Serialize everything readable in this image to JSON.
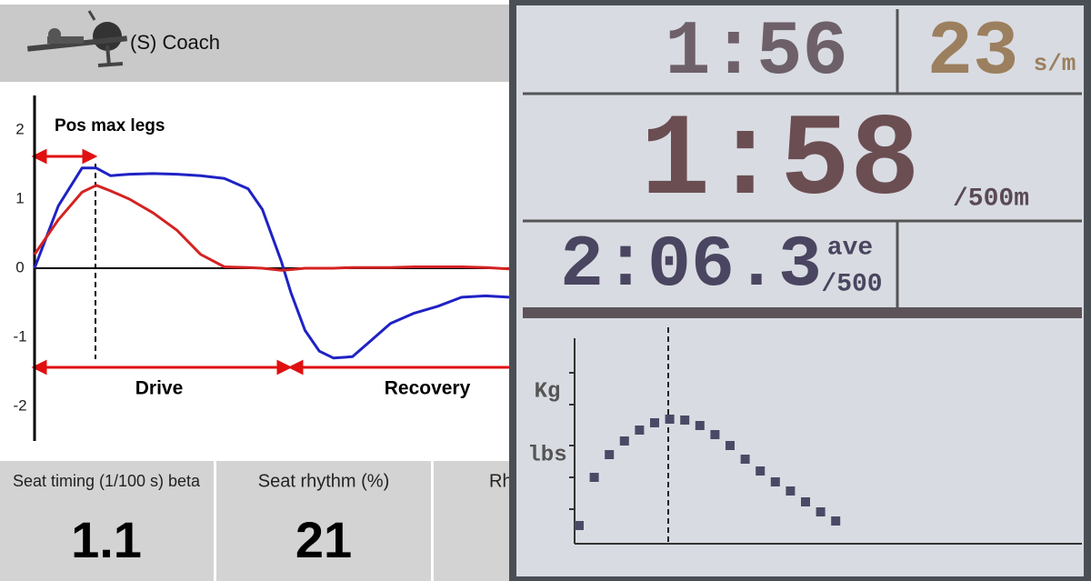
{
  "app": {
    "title": "(S) Coach",
    "chart": {
      "type": "line",
      "x": [
        0,
        5,
        10,
        13,
        16,
        20,
        25,
        30,
        35,
        40,
        45,
        48,
        52,
        54,
        57,
        60,
        63,
        67,
        70,
        75,
        80,
        85,
        90,
        95,
        100
      ],
      "xlim": [
        0,
        100
      ],
      "ylim": [
        -2.5,
        2.5
      ],
      "yticks": [
        2,
        1,
        0,
        -1,
        -2
      ],
      "series": [
        {
          "color": "#1f22c4",
          "values": [
            0,
            0.9,
            1.45,
            1.45,
            1.34,
            1.36,
            1.37,
            1.36,
            1.34,
            1.3,
            1.15,
            0.85,
            0.1,
            -0.35,
            -0.9,
            -1.2,
            -1.3,
            -1.28,
            -1.1,
            -0.8,
            -0.65,
            -0.55,
            -0.42,
            -0.4,
            -0.42
          ]
        },
        {
          "color": "#d42222",
          "values": [
            0.2,
            0.7,
            1.1,
            1.2,
            1.12,
            1.0,
            0.8,
            0.55,
            0.2,
            0.02,
            0.01,
            0.0,
            -0.03,
            -0.02,
            0.0,
            0.0,
            0.0,
            0.01,
            0.01,
            0.01,
            0.02,
            0.02,
            0.02,
            0.01,
            -0.01
          ]
        }
      ],
      "annotations": [
        "Pos max legs",
        "Drive",
        "Recovery"
      ]
    },
    "tiles": [
      {
        "label": "Seat timing (1/100 s) beta",
        "value": 1.1
      },
      {
        "label": "Seat rhythm (%)",
        "value": 21
      },
      {
        "label": "Rh"
      }
    ]
  },
  "monitor": {
    "split": "1:56",
    "rate": "23",
    "rate_unit": "s/m",
    "pace": "1:58",
    "pace_unit": "/500m",
    "average": "2:06.3",
    "average_label": "ave",
    "average_unit": "/500",
    "force_units": [
      "Kg",
      "lbs"
    ],
    "force_curve": {
      "ylim": [
        0,
        220
      ],
      "values": [
        20,
        73,
        98,
        113,
        125,
        133,
        137,
        136,
        130,
        120,
        108,
        93,
        80,
        68,
        58,
        46,
        35,
        25
      ]
    }
  }
}
